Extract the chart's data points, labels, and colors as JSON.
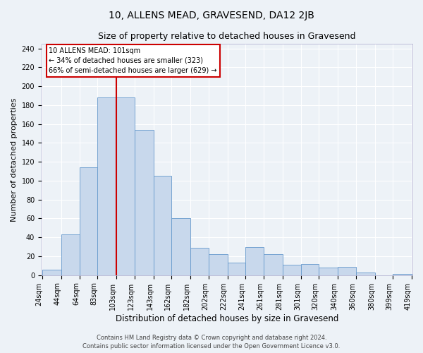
{
  "title": "10, ALLENS MEAD, GRAVESEND, DA12 2JB",
  "subtitle": "Size of property relative to detached houses in Gravesend",
  "xlabel": "Distribution of detached houses by size in Gravesend",
  "ylabel": "Number of detached properties",
  "bin_edges": [
    24,
    44,
    64,
    83,
    103,
    123,
    143,
    162,
    182,
    202,
    222,
    241,
    261,
    281,
    301,
    320,
    340,
    360,
    380,
    399,
    419
  ],
  "bar_values": [
    6,
    43,
    114,
    188,
    188,
    154,
    105,
    60,
    29,
    22,
    13,
    30,
    22,
    11,
    12,
    8,
    9,
    3,
    0,
    1
  ],
  "bar_labels": [
    "24sqm",
    "44sqm",
    "64sqm",
    "83sqm",
    "103sqm",
    "123sqm",
    "143sqm",
    "162sqm",
    "182sqm",
    "202sqm",
    "222sqm",
    "241sqm",
    "261sqm",
    "281sqm",
    "301sqm",
    "320sqm",
    "340sqm",
    "360sqm",
    "380sqm",
    "399sqm",
    "419sqm"
  ],
  "bar_color": "#c8d8ec",
  "bar_edge_color": "#6699cc",
  "vline_x": 103,
  "vline_color": "#cc0000",
  "annotation_box_text": "10 ALLENS MEAD: 101sqm\n← 34% of detached houses are smaller (323)\n66% of semi-detached houses are larger (629) →",
  "box_edge_color": "#cc0000",
  "ylim": [
    0,
    245
  ],
  "yticks": [
    0,
    20,
    40,
    60,
    80,
    100,
    120,
    140,
    160,
    180,
    200,
    220,
    240
  ],
  "footer_line1": "Contains HM Land Registry data © Crown copyright and database right 2024.",
  "footer_line2": "Contains public sector information licensed under the Open Government Licence v3.0.",
  "background_color": "#edf2f7",
  "grid_color": "#ffffff",
  "plot_bg_color": "#edf2f7",
  "title_fontsize": 10,
  "subtitle_fontsize": 9,
  "xlabel_fontsize": 8.5,
  "ylabel_fontsize": 8,
  "tick_fontsize": 7,
  "footer_fontsize": 6
}
